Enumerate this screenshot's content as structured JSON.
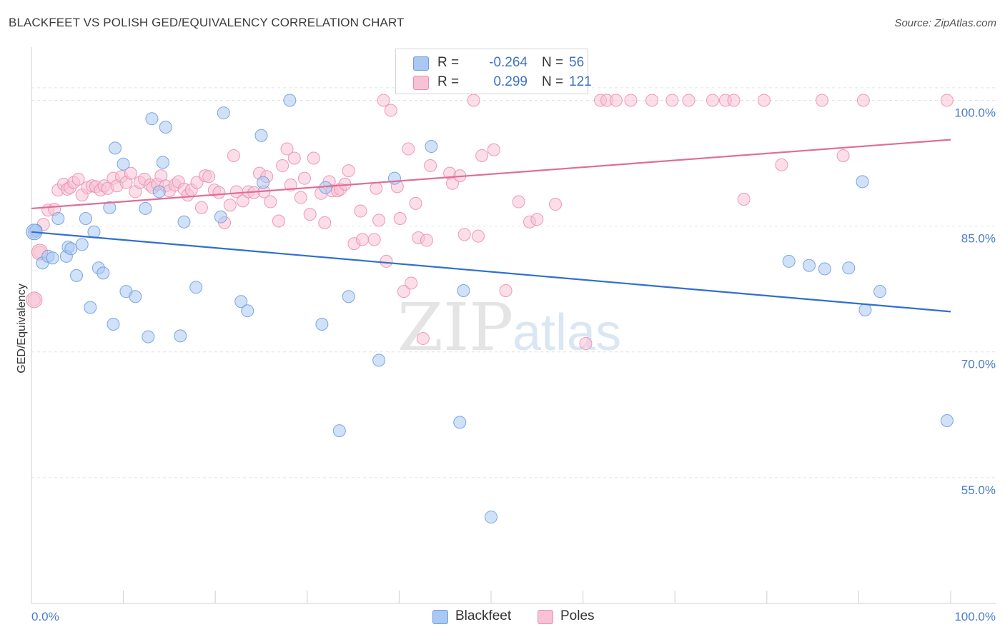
{
  "title": "BLACKFEET VS POLISH GED/EQUIVALENCY CORRELATION CHART",
  "source": "Source: ZipAtlas.com",
  "watermark": {
    "zip": "ZIP",
    "atlas": "atlas"
  },
  "legend_top": {
    "rows": [
      {
        "r_label": "R =",
        "r_value": "-0.264",
        "n_label": "N =",
        "n_value": "56",
        "color": "#a9c8f2",
        "border": "#6f9ee0"
      },
      {
        "r_label": "R =",
        "r_value": "0.299",
        "n_label": "N =",
        "n_value": "121",
        "color": "#f7c2d4",
        "border": "#eb8fb0"
      }
    ]
  },
  "legend_bottom": [
    {
      "label": "Blackfeet",
      "color": "#a9c8f2",
      "border": "#6f9ee0"
    },
    {
      "label": "Poles",
      "color": "#f7c2d4",
      "border": "#eb8fb0"
    }
  ],
  "chart_data": {
    "type": "scatter",
    "title": "BLACKFEET VS POLISH GED/EQUIVALENCY CORRELATION CHART",
    "xlabel": "",
    "ylabel": "GED/Equivalency",
    "xlim": [
      0,
      100
    ],
    "ylim": [
      40,
      106
    ],
    "x_tick_labels": [
      "0.0%",
      "100.0%"
    ],
    "y_ticks": [
      {
        "value": 100,
        "label": "100.0%"
      },
      {
        "value": 85,
        "label": "85.0%"
      },
      {
        "value": 70,
        "label": "70.0%"
      },
      {
        "value": 55,
        "label": "55.0%"
      }
    ],
    "grid": true,
    "series": [
      {
        "name": "Blackfeet",
        "color": "#a9c8f2",
        "stroke": "#6f9ee0",
        "trend": {
          "color": "#2f6fd0",
          "x": [
            0,
            100
          ],
          "y": [
            84.3,
            74.8
          ]
        },
        "points": [
          [
            0.3,
            84.3
          ],
          [
            0.5,
            84.5
          ],
          [
            1.2,
            80.6
          ],
          [
            1.8,
            81.4
          ],
          [
            2.3,
            81.2
          ],
          [
            2.9,
            85.9
          ],
          [
            3.8,
            81.4
          ],
          [
            4.0,
            82.5
          ],
          [
            4.3,
            82.3
          ],
          [
            4.9,
            79.1
          ],
          [
            5.5,
            82.8
          ],
          [
            5.9,
            85.9
          ],
          [
            6.4,
            75.3
          ],
          [
            6.8,
            84.3
          ],
          [
            7.3,
            80.0
          ],
          [
            7.8,
            79.4
          ],
          [
            8.5,
            87.2
          ],
          [
            8.9,
            73.3
          ],
          [
            9.1,
            94.3
          ],
          [
            10.0,
            92.4
          ],
          [
            10.3,
            77.2
          ],
          [
            11.3,
            76.6
          ],
          [
            12.4,
            87.1
          ],
          [
            12.7,
            71.8
          ],
          [
            13.1,
            97.8
          ],
          [
            13.9,
            89.1
          ],
          [
            14.3,
            92.6
          ],
          [
            14.6,
            96.8
          ],
          [
            16.2,
            71.9
          ],
          [
            16.6,
            85.5
          ],
          [
            17.9,
            77.7
          ],
          [
            20.6,
            86.1
          ],
          [
            20.9,
            98.5
          ],
          [
            22.8,
            76.0
          ],
          [
            23.5,
            74.9
          ],
          [
            25.0,
            95.8
          ],
          [
            25.2,
            90.2
          ],
          [
            28.1,
            100.0
          ],
          [
            31.6,
            73.3
          ],
          [
            32.0,
            89.6
          ],
          [
            33.5,
            60.6
          ],
          [
            34.5,
            76.6
          ],
          [
            37.8,
            69.0
          ],
          [
            39.5,
            90.7
          ],
          [
            43.5,
            94.5
          ],
          [
            46.6,
            61.6
          ],
          [
            47.0,
            77.3
          ],
          [
            50.0,
            50.3
          ],
          [
            82.4,
            80.8
          ],
          [
            84.6,
            80.3
          ],
          [
            86.3,
            79.9
          ],
          [
            88.9,
            80.0
          ],
          [
            90.4,
            90.3
          ],
          [
            90.7,
            75.0
          ],
          [
            92.3,
            77.2
          ],
          [
            99.6,
            61.8
          ]
        ]
      },
      {
        "name": "Poles",
        "color": "#f7c2d4",
        "stroke": "#eb8fb0",
        "trend": {
          "color": "#e06d96",
          "x": [
            0,
            100
          ],
          "y": [
            87.1,
            95.3
          ]
        },
        "points": [
          [
            0.3,
            76.2
          ],
          [
            0.9,
            81.9
          ],
          [
            1.3,
            85.2
          ],
          [
            1.8,
            86.9
          ],
          [
            2.5,
            87.0
          ],
          [
            2.9,
            89.3
          ],
          [
            3.5,
            90.0
          ],
          [
            3.9,
            89.4
          ],
          [
            4.2,
            89.6
          ],
          [
            4.6,
            90.2
          ],
          [
            5.1,
            90.6
          ],
          [
            5.5,
            88.7
          ],
          [
            6.1,
            89.6
          ],
          [
            6.6,
            89.8
          ],
          [
            7.0,
            89.7
          ],
          [
            7.5,
            89.3
          ],
          [
            7.9,
            89.8
          ],
          [
            8.3,
            89.5
          ],
          [
            8.9,
            90.7
          ],
          [
            9.3,
            89.8
          ],
          [
            9.8,
            90.9
          ],
          [
            10.3,
            90.2
          ],
          [
            10.8,
            91.3
          ],
          [
            11.3,
            89.1
          ],
          [
            11.8,
            90.2
          ],
          [
            12.3,
            90.6
          ],
          [
            12.9,
            89.9
          ],
          [
            13.2,
            89.6
          ],
          [
            13.7,
            90.0
          ],
          [
            14.1,
            91.0
          ],
          [
            14.6,
            89.8
          ],
          [
            15.0,
            89.2
          ],
          [
            15.6,
            89.9
          ],
          [
            16.0,
            90.3
          ],
          [
            16.6,
            89.4
          ],
          [
            17.0,
            88.7
          ],
          [
            17.4,
            89.3
          ],
          [
            18.0,
            90.2
          ],
          [
            18.5,
            87.2
          ],
          [
            18.9,
            91.0
          ],
          [
            19.3,
            90.9
          ],
          [
            19.9,
            89.3
          ],
          [
            20.4,
            89.0
          ],
          [
            21.0,
            85.4
          ],
          [
            21.6,
            87.5
          ],
          [
            22.0,
            93.4
          ],
          [
            22.3,
            89.1
          ],
          [
            23.0,
            88.0
          ],
          [
            23.6,
            89.1
          ],
          [
            24.2,
            89.0
          ],
          [
            24.8,
            91.3
          ],
          [
            25.3,
            89.1
          ],
          [
            25.6,
            90.9
          ],
          [
            26.0,
            87.9
          ],
          [
            26.9,
            85.6
          ],
          [
            27.3,
            92.2
          ],
          [
            27.8,
            94.2
          ],
          [
            28.2,
            89.9
          ],
          [
            28.6,
            93.1
          ],
          [
            29.3,
            88.4
          ],
          [
            29.7,
            90.7
          ],
          [
            30.3,
            86.4
          ],
          [
            30.7,
            93.1
          ],
          [
            31.5,
            88.9
          ],
          [
            31.9,
            85.4
          ],
          [
            32.4,
            90.3
          ],
          [
            32.7,
            89.2
          ],
          [
            33.3,
            89.2
          ],
          [
            33.6,
            89.4
          ],
          [
            34.1,
            90.0
          ],
          [
            34.5,
            91.6
          ],
          [
            35.1,
            82.9
          ],
          [
            35.8,
            86.8
          ],
          [
            36.0,
            83.4
          ],
          [
            37.3,
            83.4
          ],
          [
            37.5,
            89.5
          ],
          [
            37.8,
            85.7
          ],
          [
            38.3,
            100.0
          ],
          [
            38.6,
            80.8
          ],
          [
            39.1,
            98.8
          ],
          [
            39.8,
            89.7
          ],
          [
            40.1,
            85.9
          ],
          [
            40.5,
            77.2
          ],
          [
            41.0,
            94.2
          ],
          [
            41.3,
            78.2
          ],
          [
            41.8,
            87.7
          ],
          [
            42.1,
            83.6
          ],
          [
            42.6,
            71.6
          ],
          [
            43.0,
            83.3
          ],
          [
            43.4,
            92.2
          ],
          [
            45.5,
            91.3
          ],
          [
            45.8,
            90.1
          ],
          [
            46.6,
            91.0
          ],
          [
            47.1,
            84.0
          ],
          [
            48.1,
            100.0
          ],
          [
            48.6,
            83.8
          ],
          [
            49.0,
            93.4
          ],
          [
            50.3,
            94.1
          ],
          [
            51.6,
            77.3
          ],
          [
            53.0,
            87.9
          ],
          [
            54.2,
            85.5
          ],
          [
            55.0,
            85.8
          ],
          [
            57.0,
            87.6
          ],
          [
            60.3,
            71.0
          ],
          [
            61.9,
            100.0
          ],
          [
            62.6,
            100.0
          ],
          [
            63.6,
            100.0
          ],
          [
            65.2,
            100.0
          ],
          [
            67.5,
            100.0
          ],
          [
            69.7,
            100.0
          ],
          [
            71.5,
            100.0
          ],
          [
            74.1,
            100.0
          ],
          [
            75.5,
            100.0
          ],
          [
            76.4,
            100.0
          ],
          [
            77.5,
            88.2
          ],
          [
            79.7,
            100.0
          ],
          [
            81.6,
            92.3
          ],
          [
            86.0,
            100.0
          ],
          [
            88.3,
            93.4
          ],
          [
            90.5,
            100.0
          ],
          [
            99.6,
            100.0
          ]
        ]
      }
    ]
  }
}
